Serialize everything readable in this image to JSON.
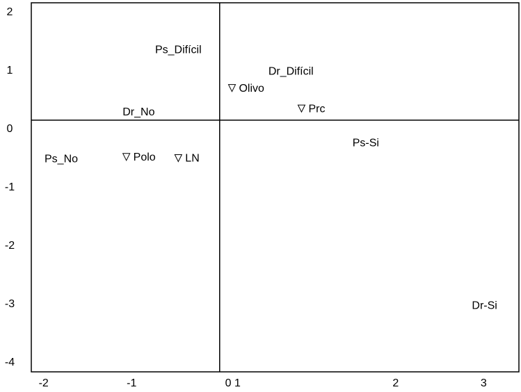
{
  "chart_data": {
    "type": "scatter",
    "xlim": [
      -2.14,
      3.4
    ],
    "ylim": [
      -4.31,
      2.01
    ],
    "xticks": [
      -2,
      -1,
      {
        "value": 0.15,
        "label": "0 1"
      },
      2,
      3
    ],
    "yticks": [
      2,
      1,
      0,
      -1,
      -2,
      -3,
      -4
    ],
    "reference_lines": {
      "x": 0,
      "y": 0
    },
    "points": [
      {
        "label": "Ps_Difícil",
        "x": -0.47,
        "y": 1.2,
        "marker": false
      },
      {
        "label": "Dr_Difícil",
        "x": 0.81,
        "y": 0.83,
        "marker": false
      },
      {
        "label": "Olivo",
        "x": 0.14,
        "y": 0.55,
        "marker": true
      },
      {
        "label": "Prc",
        "x": 0.93,
        "y": 0.2,
        "marker": true
      },
      {
        "label": "Dr_No",
        "x": -0.92,
        "y": 0.13,
        "marker": false
      },
      {
        "label": "Ps-Si",
        "x": 1.66,
        "y": -0.4,
        "marker": false
      },
      {
        "label": "Ps_No",
        "x": -1.8,
        "y": -0.67,
        "marker": false
      },
      {
        "label": "Polo",
        "x": -1.06,
        "y": -0.63,
        "marker": true
      },
      {
        "label": "LN",
        "x": -0.47,
        "y": -0.65,
        "marker": true
      },
      {
        "label": "Dr-Si",
        "x": 3.01,
        "y": -3.18,
        "marker": false
      }
    ]
  }
}
